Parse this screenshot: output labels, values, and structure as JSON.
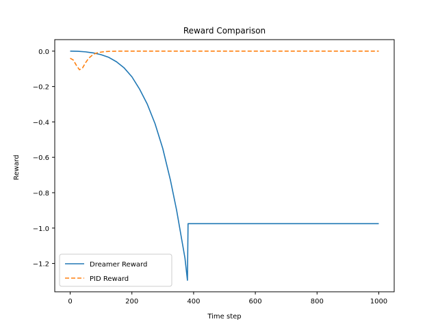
{
  "chart_data": {
    "type": "line",
    "title": "Reward Comparison",
    "xlabel": "Time step",
    "ylabel": "Reward",
    "xlim": [
      -50,
      1050
    ],
    "ylim": [
      -1.36,
      0.065
    ],
    "xticks": [
      0,
      200,
      400,
      600,
      800,
      1000
    ],
    "xtick_labels": [
      "0",
      "200",
      "400",
      "600",
      "800",
      "1000"
    ],
    "yticks": [
      0.0,
      -0.2,
      -0.4,
      -0.6,
      -0.8,
      -1.0,
      -1.2
    ],
    "ytick_labels": [
      "0.0",
      "−0.2",
      "−0.4",
      "−0.6",
      "−0.8",
      "−1.0",
      "−1.2"
    ],
    "grid": false,
    "legend_position": "lower-left",
    "series": [
      {
        "name": "Dreamer Reward",
        "color": "#1f77b4",
        "style": "solid",
        "points": [
          [
            0,
            0.0
          ],
          [
            25,
            -0.001
          ],
          [
            50,
            -0.004
          ],
          [
            75,
            -0.01
          ],
          [
            100,
            -0.02
          ],
          [
            125,
            -0.035
          ],
          [
            150,
            -0.06
          ],
          [
            175,
            -0.095
          ],
          [
            200,
            -0.145
          ],
          [
            225,
            -0.215
          ],
          [
            250,
            -0.3
          ],
          [
            275,
            -0.41
          ],
          [
            300,
            -0.55
          ],
          [
            325,
            -0.73
          ],
          [
            345,
            -0.9
          ],
          [
            360,
            -1.05
          ],
          [
            372,
            -1.17
          ],
          [
            380,
            -1.295
          ],
          [
            382,
            -0.975
          ],
          [
            400,
            -0.975
          ],
          [
            500,
            -0.975
          ],
          [
            600,
            -0.975
          ],
          [
            700,
            -0.975
          ],
          [
            800,
            -0.975
          ],
          [
            900,
            -0.975
          ],
          [
            1000,
            -0.975
          ]
        ]
      },
      {
        "name": "PID Reward",
        "color": "#ff7f0e",
        "style": "dashed",
        "points": [
          [
            0,
            -0.04
          ],
          [
            10,
            -0.05
          ],
          [
            20,
            -0.08
          ],
          [
            30,
            -0.105
          ],
          [
            40,
            -0.095
          ],
          [
            50,
            -0.065
          ],
          [
            60,
            -0.04
          ],
          [
            75,
            -0.018
          ],
          [
            90,
            -0.008
          ],
          [
            110,
            -0.003
          ],
          [
            130,
            -0.001
          ],
          [
            160,
            0.0
          ],
          [
            200,
            0.0
          ],
          [
            300,
            0.0
          ],
          [
            400,
            0.0
          ],
          [
            500,
            0.0
          ],
          [
            600,
            0.0
          ],
          [
            700,
            0.0
          ],
          [
            800,
            0.0
          ],
          [
            900,
            0.0
          ],
          [
            1000,
            0.0
          ]
        ]
      }
    ]
  }
}
